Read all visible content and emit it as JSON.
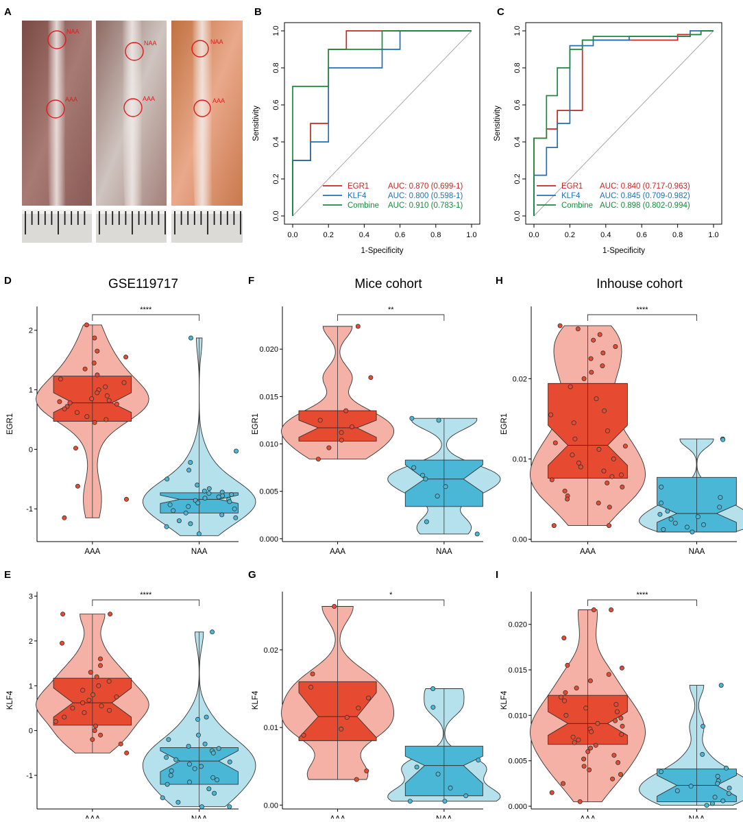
{
  "figure_panels": {
    "A": {
      "letter": "A",
      "label_naa": "NAA",
      "label_aaa": "AAA",
      "photo_count": 3
    },
    "B": {
      "letter": "B"
    },
    "C": {
      "letter": "C"
    },
    "D": {
      "letter": "D"
    },
    "E": {
      "letter": "E"
    },
    "F": {
      "letter": "F"
    },
    "G": {
      "letter": "G"
    },
    "H": {
      "letter": "H"
    },
    "I": {
      "letter": "I"
    }
  },
  "colors": {
    "aaa_dark": "#e64a30",
    "aaa_light": "#f6b1a6",
    "naa_dark": "#4ab7d6",
    "naa_light": "#b5e1ec",
    "egr1": "#c8261e",
    "klf4": "#1f6fb5",
    "combine": "#178a3c"
  },
  "chart_data": [
    {
      "panel": "B",
      "type": "line",
      "chart_kind": "roc",
      "xlabel": "1-Specificity",
      "ylabel": "Sensitivity",
      "xlim": [
        0,
        1
      ],
      "ylim": [
        0,
        1
      ],
      "xticks": [
        "0.0",
        "0.2",
        "0.4",
        "0.6",
        "0.8",
        "1.0"
      ],
      "yticks": [
        "0.0",
        "0.2",
        "0.4",
        "0.6",
        "0.8",
        "1.0"
      ],
      "legend_position": "bottom-right",
      "series": [
        {
          "name": "EGR1",
          "auc_text": "AUC: 0.870 (0.699-1)",
          "color": "#c8261e",
          "points": [
            [
              0,
              0
            ],
            [
              0,
              0.3
            ],
            [
              0.1,
              0.3
            ],
            [
              0.1,
              0.4
            ],
            [
              0.1,
              0.5
            ],
            [
              0.2,
              0.5
            ],
            [
              0.2,
              0.8
            ],
            [
              0.2,
              0.9
            ],
            [
              0.3,
              0.9
            ],
            [
              0.3,
              1.0
            ],
            [
              1.0,
              1.0
            ]
          ]
        },
        {
          "name": "KLF4",
          "auc_text": "AUC: 0.800 (0.598-1)",
          "color": "#1f6fb5",
          "points": [
            [
              0,
              0
            ],
            [
              0,
              0.3
            ],
            [
              0.1,
              0.3
            ],
            [
              0.1,
              0.4
            ],
            [
              0.2,
              0.4
            ],
            [
              0.2,
              0.8
            ],
            [
              0.5,
              0.8
            ],
            [
              0.5,
              0.9
            ],
            [
              0.5,
              0.9
            ],
            [
              0.6,
              0.9
            ],
            [
              0.6,
              1.0
            ],
            [
              1.0,
              1.0
            ]
          ]
        },
        {
          "name": "Combine",
          "auc_text": "AUC: 0.910 (0.783-1)",
          "color": "#178a3c",
          "points": [
            [
              0,
              0
            ],
            [
              0,
              0.7
            ],
            [
              0.2,
              0.7
            ],
            [
              0.2,
              0.9
            ],
            [
              0.5,
              0.9
            ],
            [
              0.5,
              1.0
            ],
            [
              1.0,
              1.0
            ]
          ]
        }
      ]
    },
    {
      "panel": "C",
      "type": "line",
      "chart_kind": "roc",
      "xlabel": "1-Specificity",
      "ylabel": "Sensitivity",
      "xlim": [
        0,
        1
      ],
      "ylim": [
        0,
        1
      ],
      "xticks": [
        "0.0",
        "0.2",
        "0.4",
        "0.6",
        "0.8",
        "1.0"
      ],
      "yticks": [
        "0.0",
        "0.2",
        "0.4",
        "0.6",
        "0.8",
        "1.0"
      ],
      "legend_position": "bottom-right",
      "series": [
        {
          "name": "EGR1",
          "auc_text": "AUC: 0.840 (0.717-0.963)",
          "color": "#c8261e",
          "points": [
            [
              0,
              0
            ],
            [
              0,
              0.42
            ],
            [
              0.07,
              0.42
            ],
            [
              0.07,
              0.47
            ],
            [
              0.13,
              0.47
            ],
            [
              0.13,
              0.57
            ],
            [
              0.2,
              0.57
            ],
            [
              0.27,
              0.57
            ],
            [
              0.27,
              0.9
            ],
            [
              0.27,
              0.95
            ],
            [
              0.33,
              0.95
            ],
            [
              0.8,
              0.95
            ],
            [
              0.8,
              0.98
            ],
            [
              0.87,
              0.98
            ],
            [
              0.93,
              0.98
            ],
            [
              0.93,
              1.0
            ],
            [
              1.0,
              1.0
            ]
          ]
        },
        {
          "name": "KLF4",
          "auc_text": "AUC: 0.845 (0.709-0.982)",
          "color": "#1f6fb5",
          "points": [
            [
              0,
              0
            ],
            [
              0,
              0.22
            ],
            [
              0.07,
              0.22
            ],
            [
              0.07,
              0.37
            ],
            [
              0.13,
              0.37
            ],
            [
              0.13,
              0.5
            ],
            [
              0.2,
              0.5
            ],
            [
              0.2,
              0.57
            ],
            [
              0.2,
              0.88
            ],
            [
              0.2,
              0.92
            ],
            [
              0.27,
              0.92
            ],
            [
              0.33,
              0.92
            ],
            [
              0.33,
              0.95
            ],
            [
              0.53,
              0.95
            ],
            [
              0.53,
              0.97
            ],
            [
              0.87,
              0.97
            ],
            [
              0.87,
              1.0
            ],
            [
              1.0,
              1.0
            ]
          ]
        },
        {
          "name": "Combine",
          "auc_text": "AUC: 0.898 (0.802-0.994)",
          "color": "#178a3c",
          "points": [
            [
              0,
              0
            ],
            [
              0,
              0.42
            ],
            [
              0.07,
              0.42
            ],
            [
              0.07,
              0.65
            ],
            [
              0.13,
              0.65
            ],
            [
              0.13,
              0.8
            ],
            [
              0.2,
              0.8
            ],
            [
              0.2,
              0.9
            ],
            [
              0.27,
              0.9
            ],
            [
              0.27,
              0.95
            ],
            [
              0.33,
              0.95
            ],
            [
              0.33,
              0.97
            ],
            [
              0.87,
              0.97
            ],
            [
              0.87,
              0.98
            ],
            [
              0.93,
              0.98
            ],
            [
              0.93,
              1.0
            ],
            [
              1.0,
              1.0
            ]
          ]
        }
      ]
    },
    {
      "panel": "D",
      "type": "violin_box",
      "title": "GSE119717",
      "ylabel": "EGR1",
      "categories": [
        "AAA",
        "NAA"
      ],
      "ylim": [
        -1.55,
        2.4
      ],
      "yticks": [
        -1,
        0,
        1,
        2
      ],
      "yticklabels": [
        "-1",
        "0",
        "1",
        "2"
      ],
      "significance": "****",
      "groups": [
        {
          "name": "AAA",
          "q1": 0.47,
          "median": 0.78,
          "q3": 1.23,
          "notch_low": 0.62,
          "notch_high": 0.95,
          "min": -1.15,
          "max": 2.09,
          "points": [
            2.09,
            1.87,
            1.65,
            1.55,
            1.45,
            1.35,
            1.25,
            1.18,
            1.12,
            1.05,
            1.0,
            0.95,
            0.9,
            0.85,
            0.82,
            0.8,
            0.78,
            0.76,
            0.72,
            0.68,
            0.62,
            0.55,
            0.5,
            0.45,
            0.02,
            -0.62,
            -0.84,
            -1.15
          ]
        },
        {
          "name": "NAA",
          "q1": -1.07,
          "median": -0.84,
          "q3": -0.73,
          "notch_low": -0.91,
          "notch_high": -0.77,
          "min": -1.45,
          "max": 1.87,
          "points": [
            1.87,
            -0.03,
            -0.22,
            -0.35,
            -0.5,
            -0.6,
            -0.66,
            -0.7,
            -0.72,
            -0.74,
            -0.76,
            -0.78,
            -0.8,
            -0.82,
            -0.84,
            -0.86,
            -0.88,
            -0.9,
            -0.93,
            -0.96,
            -1.0,
            -1.03,
            -1.07,
            -1.1,
            -1.15,
            -1.2,
            -1.25,
            -1.3,
            -1.42
          ]
        }
      ]
    },
    {
      "panel": "E",
      "type": "violin_box",
      "ylabel": "KLF4",
      "categories": [
        "AAA",
        "NAA"
      ],
      "ylim": [
        -1.75,
        3.1
      ],
      "yticks": [
        -1,
        0,
        1,
        2,
        3
      ],
      "yticklabels": [
        "-1",
        "0",
        "1",
        "2",
        "3"
      ],
      "significance": "****",
      "groups": [
        {
          "name": "AAA",
          "q1": 0.12,
          "median": 0.62,
          "q3": 1.17,
          "notch_low": 0.3,
          "notch_high": 0.95,
          "min": -0.5,
          "max": 2.6,
          "points": [
            2.6,
            2.6,
            1.95,
            1.6,
            1.45,
            1.3,
            1.2,
            1.1,
            1.0,
            0.9,
            0.8,
            0.75,
            0.68,
            0.62,
            0.55,
            0.5,
            0.45,
            0.4,
            0.3,
            0.2,
            0.1,
            0.0,
            -0.1,
            -0.2,
            -0.3,
            -0.5
          ]
        },
        {
          "name": "NAA",
          "q1": -1.2,
          "median": -0.68,
          "q3": -0.38,
          "notch_low": -0.92,
          "notch_high": -0.45,
          "min": -1.7,
          "max": 2.2,
          "points": [
            2.2,
            0.3,
            0.25,
            -0.1,
            -0.2,
            -0.3,
            -0.35,
            -0.4,
            -0.45,
            -0.5,
            -0.6,
            -0.65,
            -0.7,
            -0.75,
            -0.8,
            -0.85,
            -0.9,
            -1.0,
            -1.05,
            -1.1,
            -1.15,
            -1.2,
            -1.3,
            -1.4,
            -1.5,
            -1.6,
            -1.7,
            -1.7
          ]
        }
      ]
    },
    {
      "panel": "F",
      "type": "violin_box",
      "title": "Mice cohort",
      "ylabel": "EGR1",
      "categories": [
        "AAA",
        "NAA"
      ],
      "ylim": [
        -0.0003,
        0.0245
      ],
      "yticks": [
        0,
        0.005,
        0.01,
        0.015,
        0.02
      ],
      "yticklabels": [
        "0.000",
        "0.005",
        "0.010",
        "0.015",
        "0.020"
      ],
      "significance": "**",
      "groups": [
        {
          "name": "AAA",
          "q1": 0.0103,
          "median": 0.0117,
          "q3": 0.0135,
          "notch_low": 0.0107,
          "notch_high": 0.0125,
          "min": 0.0084,
          "max": 0.0224,
          "points": [
            0.0224,
            0.017,
            0.0135,
            0.0125,
            0.0118,
            0.0112,
            0.0104,
            0.0096,
            0.0084
          ]
        },
        {
          "name": "NAA",
          "q1": 0.0034,
          "median": 0.0063,
          "q3": 0.0083,
          "notch_low": 0.0049,
          "notch_high": 0.0078,
          "min": 0.0005,
          "max": 0.0127,
          "points": [
            0.0127,
            0.0125,
            0.0075,
            0.0067,
            0.0063,
            0.0055,
            0.0045,
            0.0018,
            0.0005
          ]
        }
      ]
    },
    {
      "panel": "G",
      "type": "violin_box",
      "ylabel": "KLF4",
      "categories": [
        "AAA",
        "NAA"
      ],
      "ylim": [
        -0.0005,
        0.0275
      ],
      "yticks": [
        0,
        0.01,
        0.02
      ],
      "yticklabels": [
        "0.00",
        "0.01",
        "0.02"
      ],
      "significance": "*",
      "groups": [
        {
          "name": "AAA",
          "q1": 0.0083,
          "median": 0.0114,
          "q3": 0.0159,
          "notch_low": 0.0087,
          "notch_high": 0.0145,
          "min": 0.0033,
          "max": 0.0256,
          "points": [
            0.0256,
            0.0169,
            0.0152,
            0.0138,
            0.0125,
            0.0113,
            0.0098,
            0.009,
            0.0044,
            0.0033
          ]
        },
        {
          "name": "NAA",
          "q1": 0.0012,
          "median": 0.0051,
          "q3": 0.0076,
          "notch_low": 0.0028,
          "notch_high": 0.0063,
          "min": 0.0005,
          "max": 0.015,
          "points": [
            0.015,
            0.0126,
            0.0058,
            0.0049,
            0.004,
            0.0022,
            0.0012,
            0.0005,
            0.0005
          ]
        }
      ]
    },
    {
      "panel": "H",
      "type": "violin_box",
      "title": "Inhouse cohort",
      "ylabel": "EGR1",
      "categories": [
        "AAA",
        "NAA"
      ],
      "ylim": [
        -0.0003,
        0.029
      ],
      "yticks": [
        0,
        0.01,
        0.02
      ],
      "yticklabels": [
        "0.00",
        "0.01",
        "0.02"
      ],
      "significance": "****",
      "groups": [
        {
          "name": "AAA",
          "q1": 0.0076,
          "median": 0.0117,
          "q3": 0.0194,
          "notch_low": 0.0092,
          "notch_high": 0.0142,
          "min": 0.0017,
          "max": 0.0266,
          "points": [
            0.0266,
            0.0262,
            0.0255,
            0.0248,
            0.024,
            0.0232,
            0.0225,
            0.0216,
            0.0208,
            0.02,
            0.019,
            0.0175,
            0.016,
            0.0155,
            0.0145,
            0.0135,
            0.0125,
            0.012,
            0.0116,
            0.0112,
            0.0105,
            0.01,
            0.0095,
            0.009,
            0.0085,
            0.008,
            0.0078,
            0.0074,
            0.007,
            0.0065,
            0.006,
            0.0054,
            0.005,
            0.0045,
            0.004,
            0.0017,
            0.0017
          ]
        },
        {
          "name": "NAA",
          "q1": 0.0009,
          "median": 0.0032,
          "q3": 0.0077,
          "notch_low": 0.0021,
          "notch_high": 0.0043,
          "min": 0.0009,
          "max": 0.0125,
          "points": [
            0.0125,
            0.0124,
            0.0065,
            0.0052,
            0.0045,
            0.004,
            0.0035,
            0.0031,
            0.0028,
            0.0025,
            0.002,
            0.0018,
            0.0015,
            0.0012,
            0.0009
          ]
        }
      ]
    },
    {
      "panel": "I",
      "type": "violin_box",
      "ylabel": "KLF4",
      "categories": [
        "AAA",
        "NAA"
      ],
      "ylim": [
        -0.0003,
        0.0236
      ],
      "yticks": [
        0,
        0.005,
        0.01,
        0.015,
        0.02
      ],
      "yticklabels": [
        "0.000",
        "0.005",
        "0.010",
        "0.015",
        "0.020"
      ],
      "significance": "****",
      "groups": [
        {
          "name": "AAA",
          "q1": 0.0068,
          "median": 0.0091,
          "q3": 0.0122,
          "notch_low": 0.0078,
          "notch_high": 0.0104,
          "min": 0.0005,
          "max": 0.0216,
          "points": [
            0.0216,
            0.0216,
            0.0185,
            0.0155,
            0.0152,
            0.0145,
            0.0138,
            0.013,
            0.0125,
            0.012,
            0.0116,
            0.0112,
            0.0108,
            0.0104,
            0.01,
            0.0097,
            0.0094,
            0.0091,
            0.0088,
            0.0085,
            0.0082,
            0.0079,
            0.0076,
            0.0073,
            0.007,
            0.0067,
            0.0064,
            0.006,
            0.0056,
            0.0052,
            0.0048,
            0.0044,
            0.004,
            0.0035,
            0.003,
            0.0025,
            0.0015,
            0.0005
          ]
        },
        {
          "name": "NAA",
          "q1": 0.0005,
          "median": 0.0023,
          "q3": 0.0041,
          "notch_low": 0.0011,
          "notch_high": 0.0034,
          "min": 0.0001,
          "max": 0.0133,
          "points": [
            0.0133,
            0.0088,
            0.0057,
            0.0042,
            0.0038,
            0.0033,
            0.0028,
            0.0025,
            0.0022,
            0.002,
            0.0017,
            0.0014,
            0.001,
            0.0006,
            0.0003,
            0.0001
          ]
        }
      ]
    }
  ]
}
